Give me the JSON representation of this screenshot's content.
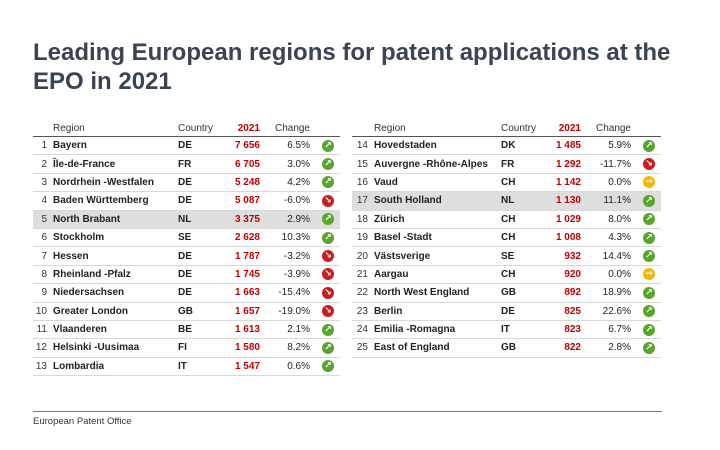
{
  "title": "Leading European regions for patent applications at the EPO in 2021",
  "headers": {
    "region": "Region",
    "country": "Country",
    "year": "2021",
    "change": "Change"
  },
  "left_rows": [
    {
      "rank": "1",
      "region": "Bayern",
      "country": "DE",
      "value": "7 656",
      "change": "6.5%",
      "trend": "up"
    },
    {
      "rank": "2",
      "region": "Île-de-France",
      "country": "FR",
      "value": "6 705",
      "change": "3.0%",
      "trend": "up"
    },
    {
      "rank": "3",
      "region": "Nordrhein -Westfalen",
      "country": "DE",
      "value": "5 248",
      "change": "4.2%",
      "trend": "up"
    },
    {
      "rank": "4",
      "region": "Baden Württemberg",
      "country": "DE",
      "value": "5 087",
      "change": "-6.0%",
      "trend": "down"
    },
    {
      "rank": "5",
      "region": "North Brabant",
      "country": "NL",
      "value": "3 375",
      "change": "2.9%",
      "trend": "up",
      "highlight": true
    },
    {
      "rank": "6",
      "region": "Stockholm",
      "country": "SE",
      "value": "2 628",
      "change": "10.3%",
      "trend": "up"
    },
    {
      "rank": "7",
      "region": "Hessen",
      "country": "DE",
      "value": "1 787",
      "change": "-3.2%",
      "trend": "down"
    },
    {
      "rank": "8",
      "region": "Rheinland -Pfalz",
      "country": "DE",
      "value": "1 745",
      "change": "-3.9%",
      "trend": "down"
    },
    {
      "rank": "9",
      "region": "Niedersachsen",
      "country": "DE",
      "value": "1 663",
      "change": "-15.4%",
      "trend": "down"
    },
    {
      "rank": "10",
      "region": "Greater London",
      "country": "GB",
      "value": "1 657",
      "change": "-19.0%",
      "trend": "down"
    },
    {
      "rank": "11",
      "region": "Vlaanderen",
      "country": "BE",
      "value": "1 613",
      "change": "2.1%",
      "trend": "up"
    },
    {
      "rank": "12",
      "region": "Helsinki -Uusimaa",
      "country": "FI",
      "value": "1 580",
      "change": "8.2%",
      "trend": "up"
    },
    {
      "rank": "13",
      "region": "Lombardia",
      "country": "IT",
      "value": "1 547",
      "change": "0.6%",
      "trend": "up"
    }
  ],
  "right_rows": [
    {
      "rank": "14",
      "region": "Hovedstaden",
      "country": "DK",
      "value": "1 485",
      "change": "5.9%",
      "trend": "up"
    },
    {
      "rank": "15",
      "region": "Auvergne -Rhône-Alpes",
      "country": "FR",
      "value": "1 292",
      "change": "-11.7%",
      "trend": "down"
    },
    {
      "rank": "16",
      "region": "Vaud",
      "country": "CH",
      "value": "1 142",
      "change": "0.0%",
      "trend": "flat"
    },
    {
      "rank": "17",
      "region": "South Holland",
      "country": "NL",
      "value": "1 130",
      "change": "11.1%",
      "trend": "up",
      "highlight": true
    },
    {
      "rank": "18",
      "region": "Zürich",
      "country": "CH",
      "value": "1 029",
      "change": "8.0%",
      "trend": "up"
    },
    {
      "rank": "19",
      "region": "Basel -Stadt",
      "country": "CH",
      "value": "1 008",
      "change": "4.3%",
      "trend": "up"
    },
    {
      "rank": "20",
      "region": "Västsverige",
      "country": "SE",
      "value": "932",
      "change": "14.4%",
      "trend": "up"
    },
    {
      "rank": "21",
      "region": "Aargau",
      "country": "CH",
      "value": "920",
      "change": "0.0%",
      "trend": "flat"
    },
    {
      "rank": "22",
      "region": "North West England",
      "country": "GB",
      "value": "892",
      "change": "18.9%",
      "trend": "up"
    },
    {
      "rank": "23",
      "region": "Berlin",
      "country": "DE",
      "value": "825",
      "change": "22.6%",
      "trend": "up"
    },
    {
      "rank": "24",
      "region": "Emilia -Romagna",
      "country": "IT",
      "value": "823",
      "change": "6.7%",
      "trend": "up"
    },
    {
      "rank": "25",
      "region": "East of England",
      "country": "GB",
      "value": "822",
      "change": "2.8%",
      "trend": "up"
    }
  ],
  "footer": "European Patent Office",
  "colors": {
    "value_red": "#c00000",
    "up_green": "#58a52c",
    "down_red": "#cc1c1c",
    "flat_yellow": "#f2b705"
  }
}
